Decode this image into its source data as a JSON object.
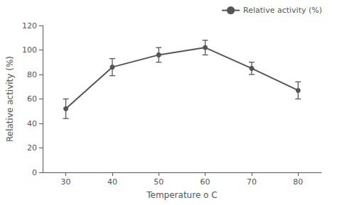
{
  "chart_data": {
    "type": "line",
    "x_label": "Temperature o C",
    "y_label": "Relative activity (%)",
    "x": [
      30,
      40,
      50,
      60,
      70,
      80
    ],
    "xlim": [
      25,
      85
    ],
    "xticks": [
      30,
      40,
      50,
      60,
      70,
      80
    ],
    "ylim": [
      0,
      120
    ],
    "yticks": [
      0,
      20,
      40,
      60,
      80,
      100,
      120
    ],
    "grid": false,
    "legend": "upper right",
    "series": [
      {
        "name": "Relative activity (%)",
        "color": "#555555",
        "marker": "circle",
        "values": [
          52,
          86,
          96,
          102,
          85,
          67
        ],
        "yerr": [
          8,
          7,
          6,
          6,
          5,
          7
        ]
      }
    ]
  }
}
